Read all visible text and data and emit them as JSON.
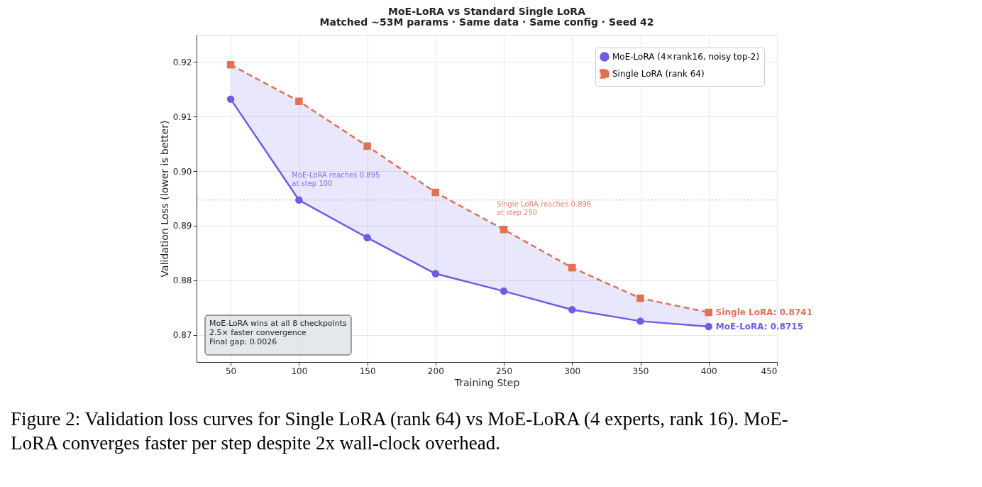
{
  "chart_data": {
    "type": "line",
    "title": "MoE-LoRA vs Standard Single LoRA",
    "subtitle": "Matched ~53M params  ·  Same data  ·  Same config  ·  Seed 42",
    "xlabel": "Training Step",
    "ylabel": "Validation Loss (lower is better)",
    "x": [
      50,
      100,
      150,
      200,
      250,
      300,
      350,
      400
    ],
    "series": [
      {
        "name": "MoE-LoRA (4×rank16, noisy top-2)",
        "color": "#6c5ce7",
        "marker": "circle",
        "line_style": "solid",
        "values": [
          0.9132,
          0.8947,
          0.8878,
          0.8812,
          0.878,
          0.8746,
          0.8725,
          0.8715
        ]
      },
      {
        "name": "Single LoRA (rank 64)",
        "color": "#e17055",
        "marker": "square",
        "line_style": "dashed",
        "values": [
          0.9195,
          0.9128,
          0.9046,
          0.8961,
          0.8893,
          0.8823,
          0.8767,
          0.8741
        ]
      }
    ],
    "xlim": [
      25,
      450
    ],
    "xticks": [
      50,
      100,
      150,
      200,
      250,
      300,
      350,
      400,
      450
    ],
    "ylim": [
      0.865,
      0.925
    ],
    "yticks": [
      0.87,
      0.88,
      0.89,
      {
        "value": 0.9,
        "label": "0.90"
      },
      0.91,
      0.92
    ],
    "grid": true,
    "legend": "top right",
    "ref_lines": [
      {
        "axis": "y",
        "value": 0.8947,
        "color": "#b0a8e8",
        "line_style": "dotted"
      }
    ],
    "annotations": [
      {
        "text": "MoE-LoRA reaches 0.895\nat step 100",
        "x": 100,
        "y": 0.8947
      },
      {
        "text": "Single LoRA reaches 0.896\nat step 250",
        "x": 250,
        "y": 0.8893
      },
      {
        "text": "Single LoRA: 0.8741",
        "x": 400,
        "y": 0.8741
      },
      {
        "text": "MoE-LoRA: 0.8715",
        "x": 400,
        "y": 0.8715
      },
      "MoE-LoRA wins at all 8 checkpoints\n2.5× faster convergence\nFinal gap: 0.0026",
      "Figure 2: Validation loss curves for Single LoRA (rank 64) vs MoE-LoRA (4 experts, rank 16). MoE-\nLoRA converges faster per step despite 2x wall-clock overhead."
    ]
  }
}
